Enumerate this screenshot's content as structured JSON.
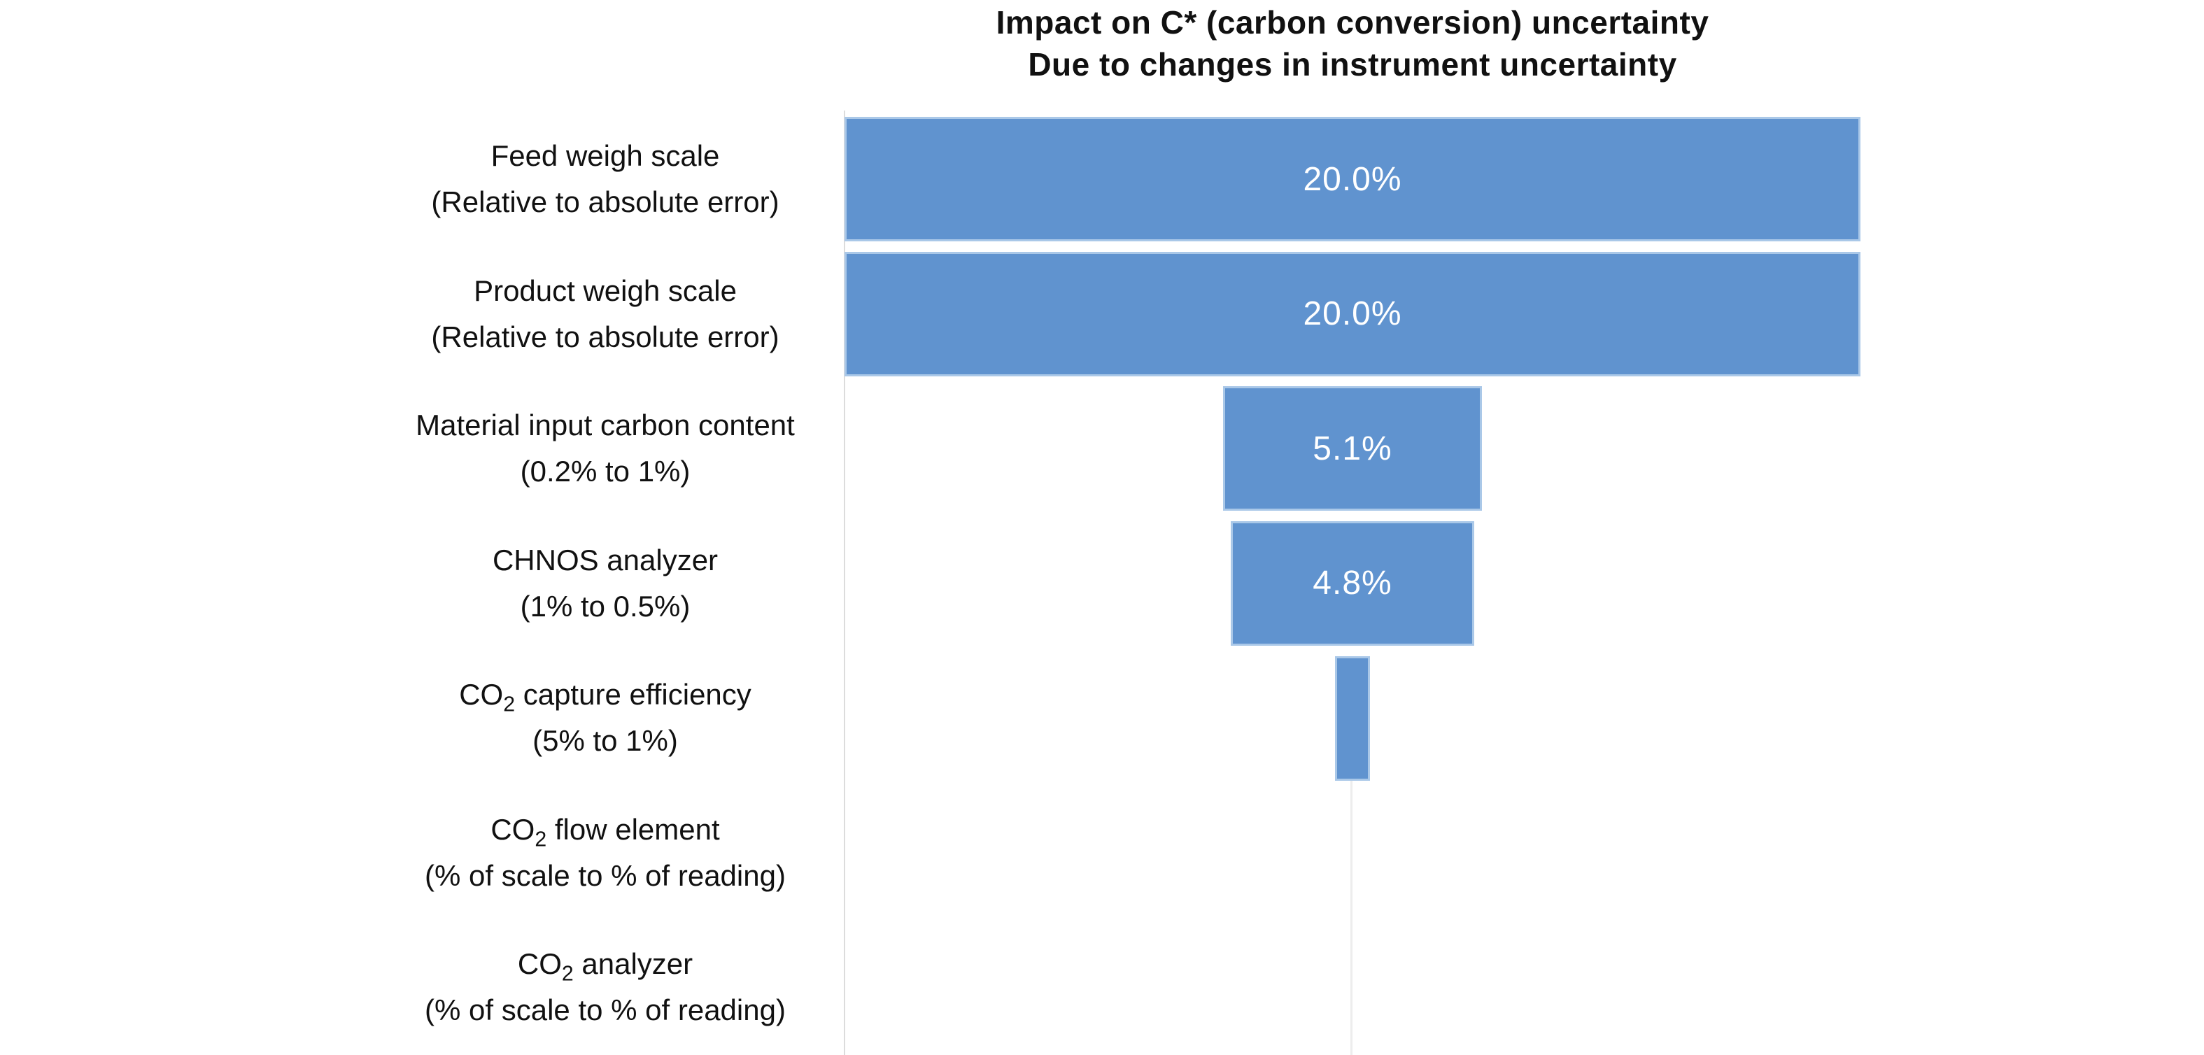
{
  "chart_data": {
    "type": "bar",
    "orientation": "horizontal",
    "style": "tornado-centered-bars",
    "title_lines": [
      "Impact on C* (carbon conversion) uncertainty",
      "Due to changes in instrument uncertainty"
    ],
    "categories": [
      [
        "Feed weigh scale",
        "(Relative to absolute error)"
      ],
      [
        "Product weigh scale",
        "(Relative to absolute error)"
      ],
      [
        "Material input carbon content",
        "(0.2% to 1%)"
      ],
      [
        "CHNOS analyzer",
        "(1% to 0.5%)"
      ],
      [
        "CO₂ capture efficiency",
        "(5% to 1%)"
      ],
      [
        "CO₂ flow element",
        "(% of scale to % of reading)"
      ],
      [
        "CO₂ analyzer",
        "(% of scale to % of reading)"
      ]
    ],
    "values": [
      20.0,
      20.0,
      5.1,
      4.8,
      0.7,
      0,
      0
    ],
    "value_labels": [
      "20.0%",
      "20.0%",
      "5.1%",
      "4.8%",
      "",
      "",
      ""
    ],
    "value_axis_max_percent": 20.0,
    "value_axis_visible": false,
    "gridlines": "none",
    "legend": "none",
    "data_label_position": "center"
  },
  "colors": {
    "bar_fill": "#6093cf",
    "bar_border": "#aac8e8",
    "bar_label": "#ffffff",
    "axis_line": "#dcdcdc",
    "center_gridline": "#ededed",
    "title": "#111111",
    "label": "#111111",
    "background": "#ffffff"
  }
}
